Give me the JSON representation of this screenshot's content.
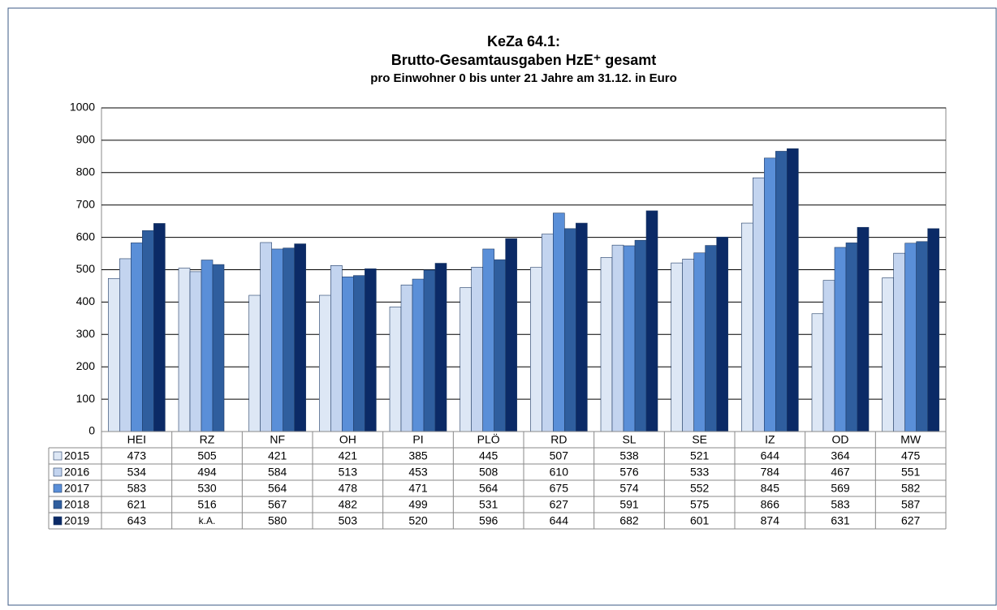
{
  "chart_data": {
    "type": "bar",
    "title": "KeZa 64.1:",
    "subtitle": "Brutto-Gesamtausgaben HzE⁺ gesamt",
    "subtitle2": "pro Einwohner 0 bis unter 21 Jahre am 31.12. in Euro",
    "categories": [
      "HEI",
      "RZ",
      "NF",
      "OH",
      "PI",
      "PLÖ",
      "RD",
      "SL",
      "SE",
      "IZ",
      "OD",
      "MW"
    ],
    "series": [
      {
        "name": "2015",
        "color": "#dde7f5",
        "values": [
          473,
          505,
          421,
          421,
          385,
          445,
          507,
          538,
          521,
          644,
          364,
          475
        ]
      },
      {
        "name": "2016",
        "color": "#c3d4ef",
        "values": [
          534,
          494,
          584,
          513,
          453,
          508,
          610,
          576,
          533,
          784,
          467,
          551
        ]
      },
      {
        "name": "2017",
        "color": "#5a8fd8",
        "values": [
          583,
          530,
          564,
          478,
          471,
          564,
          675,
          574,
          552,
          845,
          569,
          582
        ]
      },
      {
        "name": "2018",
        "color": "#2f5e9e",
        "values": [
          621,
          516,
          567,
          482,
          499,
          531,
          627,
          591,
          575,
          866,
          583,
          587
        ]
      },
      {
        "name": "2019",
        "color": "#0b2a66",
        "values": [
          643,
          null,
          580,
          503,
          520,
          596,
          644,
          682,
          601,
          874,
          631,
          627
        ],
        "value_labels": [
          "643",
          "k.A.",
          "580",
          "503",
          "520",
          "596",
          "644",
          "682",
          "601",
          "874",
          "631",
          "627"
        ]
      }
    ],
    "ylim": [
      0,
      1000
    ],
    "yticks": [
      0,
      100,
      200,
      300,
      400,
      500,
      600,
      700,
      800,
      900,
      1000
    ],
    "grid": true
  }
}
